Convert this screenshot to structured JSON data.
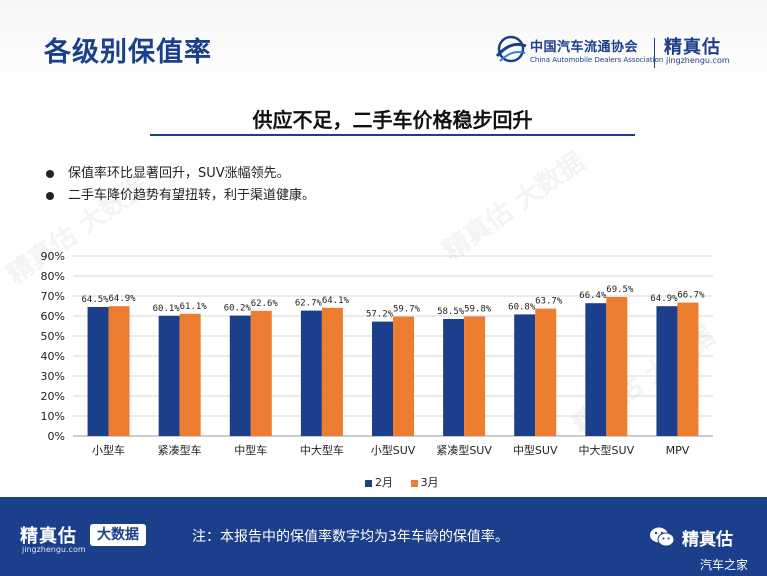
{
  "slide": {
    "title": "各级别保值率",
    "subtitle": "供应不足，二手车价格稳步回升",
    "bullets": [
      "保值率环比显著回升，SUV涨幅领先。",
      "二手车降价趋势有望扭转，利于渠道健康。"
    ]
  },
  "header_logo": {
    "cada_cn": "中国汽车流通协会",
    "cada_en": "China Automobile Dealers Association",
    "jzg_name": "精真估",
    "jzg_url": "jingzhengu.com"
  },
  "footer": {
    "logo": "精真估",
    "url": "jingzhengu.com",
    "badge": "大数据",
    "note": "注：本报告中的保值率数字均为3年车龄的保值率。",
    "wechat_name": "精真估",
    "source_mark": "汽车之家"
  },
  "watermark_text": "精真估 大数据",
  "colors": {
    "brand": "#1c3f8c",
    "series_feb": "#1c3f8c",
    "series_mar": "#ed7d31"
  },
  "icons": [
    "cada-emblem-icon",
    "wechat-icon",
    "bullet-dot-icon"
  ],
  "chart_data": {
    "type": "bar",
    "categories": [
      "小型车",
      "紧凑型车",
      "中型车",
      "中大型车",
      "小型SUV",
      "紧凑型SUV",
      "中型SUV",
      "中大型SUV",
      "MPV"
    ],
    "series": [
      {
        "name": "2月",
        "values": [
          64.5,
          60.1,
          60.2,
          62.7,
          57.2,
          58.5,
          60.8,
          66.4,
          64.9
        ],
        "labels": [
          "64.5%",
          "60.1%",
          "60.2%",
          "62.7%",
          "57.2%",
          "58.5%",
          "60.8%",
          "66.4%",
          "64.9%"
        ]
      },
      {
        "name": "3月",
        "values": [
          64.9,
          61.1,
          62.6,
          64.1,
          59.7,
          59.8,
          63.7,
          69.5,
          66.7
        ],
        "labels": [
          "64.9%",
          "61.1%",
          "62.6%",
          "64.1%",
          "59.7%",
          "59.8%",
          "63.7%",
          "69.5%",
          "66.7%"
        ]
      }
    ],
    "ylim": [
      0,
      90
    ],
    "yticks": [
      "0%",
      "10%",
      "20%",
      "30%",
      "40%",
      "50%",
      "60%",
      "70%",
      "80%",
      "90%"
    ],
    "grid": true,
    "legend": "bottom-center"
  }
}
